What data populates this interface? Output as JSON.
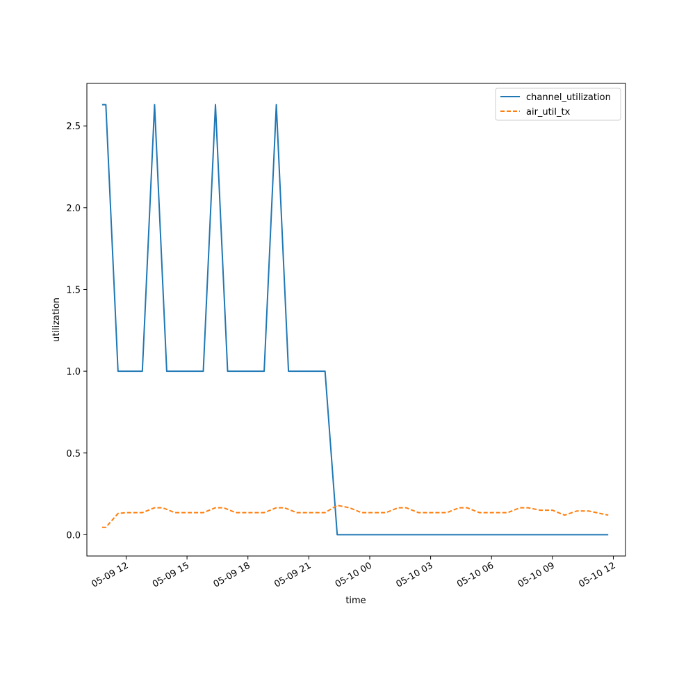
{
  "chart_data": {
    "type": "line",
    "title": "",
    "xlabel": "time",
    "ylabel": "utilization",
    "x_axis": "datetime",
    "xlim": [
      "2024-05-09 10:04",
      "2024-05-10 12:36"
    ],
    "ylim": [
      -0.13,
      2.76
    ],
    "x_ticks": [
      {
        "value": "2024-05-09 12:00",
        "label": "05-09 12"
      },
      {
        "value": "2024-05-09 15:00",
        "label": "05-09 15"
      },
      {
        "value": "2024-05-09 18:00",
        "label": "05-09 18"
      },
      {
        "value": "2024-05-09 21:00",
        "label": "05-09 21"
      },
      {
        "value": "2024-05-10 00:00",
        "label": "05-10 00"
      },
      {
        "value": "2024-05-10 03:00",
        "label": "05-10 03"
      },
      {
        "value": "2024-05-10 06:00",
        "label": "05-10 06"
      },
      {
        "value": "2024-05-10 09:00",
        "label": "05-10 09"
      },
      {
        "value": "2024-05-10 12:00",
        "label": "05-10 12"
      }
    ],
    "y_ticks": [
      {
        "value": 0.0,
        "label": "0.0"
      },
      {
        "value": 0.5,
        "label": "0.5"
      },
      {
        "value": 1.0,
        "label": "1.0"
      },
      {
        "value": 1.5,
        "label": "1.5"
      },
      {
        "value": 2.0,
        "label": "2.0"
      },
      {
        "value": 2.5,
        "label": "2.5"
      }
    ],
    "grid": false,
    "legend_position": "top-right",
    "series": [
      {
        "name": "channel_utilization",
        "color": "#1f77b4",
        "style": "solid",
        "points": [
          [
            "2024-05-09 10:49",
            2.63
          ],
          [
            "2024-05-09 11:00",
            2.63
          ],
          [
            "2024-05-09 11:36",
            1.0
          ],
          [
            "2024-05-09 12:48",
            1.0
          ],
          [
            "2024-05-09 13:24",
            2.63
          ],
          [
            "2024-05-09 14:00",
            1.0
          ],
          [
            "2024-05-09 15:48",
            1.0
          ],
          [
            "2024-05-09 16:24",
            2.63
          ],
          [
            "2024-05-09 17:00",
            1.0
          ],
          [
            "2024-05-09 18:48",
            1.0
          ],
          [
            "2024-05-09 19:24",
            2.63
          ],
          [
            "2024-05-09 20:00",
            1.0
          ],
          [
            "2024-05-09 21:48",
            1.0
          ],
          [
            "2024-05-09 22:24",
            0.0
          ],
          [
            "2024-05-10 11:45",
            0.0
          ]
        ]
      },
      {
        "name": "air_util_tx",
        "color": "#ff7f0e",
        "style": "dashed",
        "points": [
          [
            "2024-05-09 10:49",
            0.045
          ],
          [
            "2024-05-09 11:00",
            0.045
          ],
          [
            "2024-05-09 11:36",
            0.13
          ],
          [
            "2024-05-09 12:00",
            0.135
          ],
          [
            "2024-05-09 12:48",
            0.135
          ],
          [
            "2024-05-09 13:24",
            0.165
          ],
          [
            "2024-05-09 13:48",
            0.165
          ],
          [
            "2024-05-09 14:24",
            0.135
          ],
          [
            "2024-05-09 15:48",
            0.135
          ],
          [
            "2024-05-09 16:24",
            0.165
          ],
          [
            "2024-05-09 16:48",
            0.165
          ],
          [
            "2024-05-09 17:24",
            0.135
          ],
          [
            "2024-05-09 18:48",
            0.135
          ],
          [
            "2024-05-09 19:24",
            0.165
          ],
          [
            "2024-05-09 19:48",
            0.165
          ],
          [
            "2024-05-09 20:24",
            0.135
          ],
          [
            "2024-05-09 21:48",
            0.135
          ],
          [
            "2024-05-09 22:24",
            0.18
          ],
          [
            "2024-05-09 23:00",
            0.165
          ],
          [
            "2024-05-09 23:36",
            0.135
          ],
          [
            "2024-05-10 00:48",
            0.135
          ],
          [
            "2024-05-10 01:24",
            0.165
          ],
          [
            "2024-05-10 01:48",
            0.165
          ],
          [
            "2024-05-10 02:24",
            0.135
          ],
          [
            "2024-05-10 03:48",
            0.135
          ],
          [
            "2024-05-10 04:24",
            0.165
          ],
          [
            "2024-05-10 04:48",
            0.165
          ],
          [
            "2024-05-10 05:24",
            0.135
          ],
          [
            "2024-05-10 06:48",
            0.135
          ],
          [
            "2024-05-10 07:24",
            0.165
          ],
          [
            "2024-05-10 07:48",
            0.165
          ],
          [
            "2024-05-10 08:24",
            0.15
          ],
          [
            "2024-05-10 09:00",
            0.15
          ],
          [
            "2024-05-10 09:36",
            0.12
          ],
          [
            "2024-05-10 10:12",
            0.145
          ],
          [
            "2024-05-10 10:48",
            0.145
          ],
          [
            "2024-05-10 11:45",
            0.12
          ]
        ]
      }
    ]
  }
}
